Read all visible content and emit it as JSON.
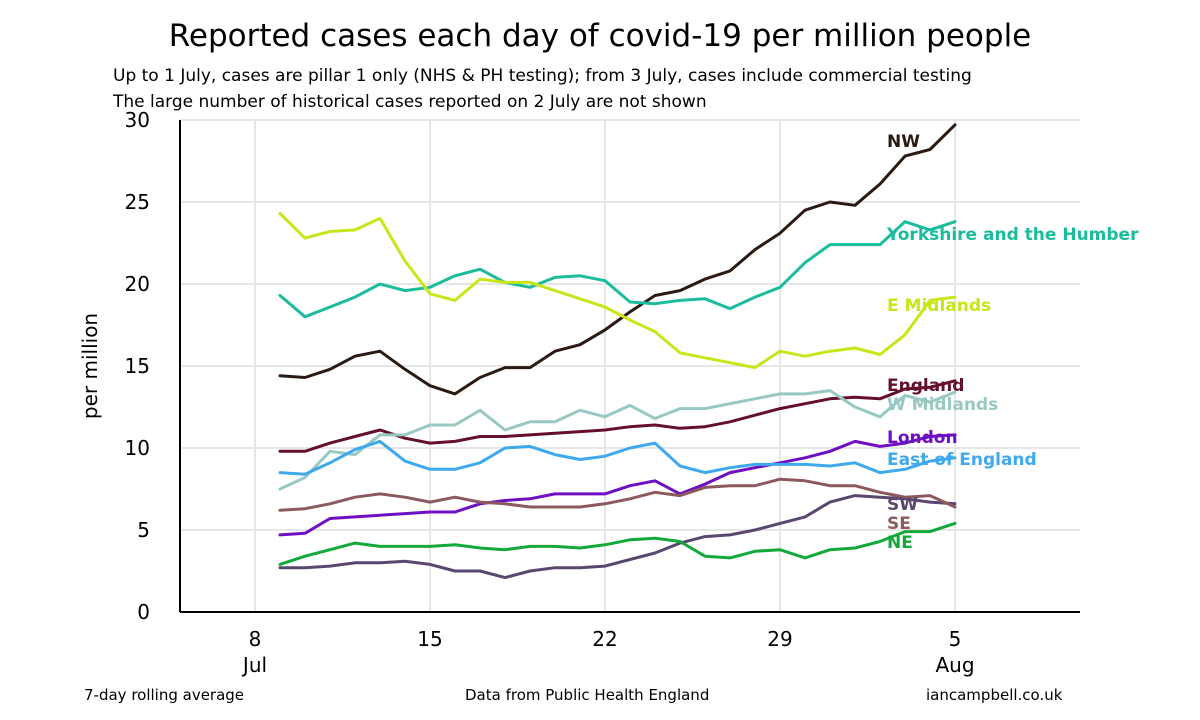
{
  "title": "Reported cases each day of covid-19 per million people",
  "subtitle_1": "Up to 1 July, cases are pillar 1 only (NHS & PH testing); from 3 July, cases include commercial testing",
  "subtitle_2": "The large number of historical cases reported on 2 July are not shown",
  "footer": {
    "left": "7-day rolling average",
    "center": "Data from Public Health England",
    "right": "iancampbell.co.uk"
  },
  "chart_data": {
    "type": "line",
    "ylabel": "per million",
    "xlabel": "",
    "ylim": [
      0,
      30
    ],
    "yticks": [
      0,
      5,
      10,
      15,
      20,
      25,
      30
    ],
    "xlim_days_from_8_jul": [
      -3,
      33
    ],
    "xticks": [
      {
        "day": 0,
        "label": "8",
        "sublabel": "Jul"
      },
      {
        "day": 7,
        "label": "15",
        "sublabel": ""
      },
      {
        "day": 14,
        "label": "22",
        "sublabel": ""
      },
      {
        "day": 21,
        "label": "29",
        "sublabel": ""
      },
      {
        "day": 28,
        "label": "5",
        "sublabel": "Aug"
      }
    ],
    "grid": true,
    "x_dates": [
      "9 Jul",
      "10 Jul",
      "11 Jul",
      "12 Jul",
      "13 Jul",
      "14 Jul",
      "15 Jul",
      "16 Jul",
      "17 Jul",
      "18 Jul",
      "19 Jul",
      "20 Jul",
      "21 Jul",
      "22 Jul",
      "23 Jul",
      "24 Jul",
      "25 Jul",
      "26 Jul",
      "27 Jul",
      "28 Jul",
      "29 Jul",
      "30 Jul",
      "31 Jul",
      "1 Aug",
      "2 Aug",
      "3 Aug",
      "4 Aug",
      "5 Aug"
    ],
    "series": [
      {
        "name": "NW",
        "color": "#2b1a12",
        "values": [
          14.4,
          14.3,
          14.8,
          15.6,
          15.9,
          14.8,
          13.8,
          13.3,
          14.3,
          14.9,
          14.9,
          15.9,
          16.3,
          17.2,
          18.3,
          19.3,
          19.6,
          20.3,
          20.8,
          22.1,
          23.1,
          24.5,
          25.0,
          24.8,
          26.1,
          27.8,
          28.2,
          29.7
        ]
      },
      {
        "name": "Yorkshire and the Humber",
        "color": "#1abc9c",
        "values": [
          19.3,
          18.0,
          18.6,
          19.2,
          20.0,
          19.6,
          19.8,
          20.5,
          20.9,
          20.1,
          19.8,
          20.4,
          20.5,
          20.2,
          18.9,
          18.8,
          19.0,
          19.1,
          18.5,
          19.2,
          19.8,
          21.3,
          22.4,
          22.4,
          22.4,
          23.8,
          23.3,
          23.8
        ]
      },
      {
        "name": "E Midlands",
        "color": "#c8e619",
        "values": [
          24.3,
          22.8,
          23.2,
          23.3,
          24.0,
          21.4,
          19.4,
          19.0,
          20.3,
          20.1,
          20.1,
          19.6,
          19.1,
          18.6,
          17.8,
          17.1,
          15.8,
          15.5,
          15.2,
          14.9,
          15.9,
          15.6,
          15.9,
          16.1,
          15.7,
          16.9,
          19.0,
          19.2
        ]
      },
      {
        "name": "England",
        "color": "#64102c",
        "values": [
          9.8,
          9.8,
          10.3,
          10.7,
          11.1,
          10.6,
          10.3,
          10.4,
          10.7,
          10.7,
          10.8,
          10.9,
          11.0,
          11.1,
          11.3,
          11.4,
          11.2,
          11.3,
          11.6,
          12.0,
          12.4,
          12.7,
          13.0,
          13.1,
          13.0,
          13.6,
          13.7,
          14.1
        ]
      },
      {
        "name": "W Midlands",
        "color": "#97c9c2",
        "values": [
          7.5,
          8.2,
          9.8,
          9.6,
          10.8,
          10.8,
          11.4,
          11.4,
          12.3,
          11.1,
          11.6,
          11.6,
          12.3,
          11.9,
          12.6,
          11.8,
          12.4,
          12.4,
          12.7,
          13.0,
          13.3,
          13.3,
          13.5,
          12.5,
          11.9,
          13.2,
          12.8,
          13.4
        ]
      },
      {
        "name": "London",
        "color": "#6e0fc4",
        "values": [
          4.7,
          4.8,
          5.7,
          5.8,
          5.9,
          6.0,
          6.1,
          6.1,
          6.6,
          6.8,
          6.9,
          7.2,
          7.2,
          7.2,
          7.7,
          8.0,
          7.2,
          7.8,
          8.5,
          8.8,
          9.1,
          9.4,
          9.8,
          10.4,
          10.1,
          10.3,
          10.7,
          10.8
        ]
      },
      {
        "name": "East of England",
        "color": "#3fa9ee",
        "values": [
          8.5,
          8.4,
          9.1,
          9.9,
          10.4,
          9.2,
          8.7,
          8.7,
          9.1,
          10.0,
          10.1,
          9.6,
          9.3,
          9.5,
          10.0,
          10.3,
          8.9,
          8.5,
          8.8,
          9.0,
          9.0,
          9.0,
          8.9,
          9.1,
          8.5,
          8.7,
          9.2,
          9.4
        ]
      },
      {
        "name": "SW",
        "color": "#5a4770",
        "values": [
          2.7,
          2.7,
          2.8,
          3.0,
          3.0,
          3.1,
          2.9,
          2.5,
          2.5,
          2.1,
          2.5,
          2.7,
          2.7,
          2.8,
          3.2,
          3.6,
          4.2,
          4.6,
          4.7,
          5.0,
          5.4,
          5.8,
          6.7,
          7.1,
          7.0,
          6.9,
          6.7,
          6.6
        ]
      },
      {
        "name": "SE",
        "color": "#8c5a5e",
        "values": [
          6.2,
          6.3,
          6.6,
          7.0,
          7.2,
          7.0,
          6.7,
          7.0,
          6.7,
          6.6,
          6.4,
          6.4,
          6.4,
          6.6,
          6.9,
          7.3,
          7.1,
          7.6,
          7.7,
          7.7,
          8.1,
          8.0,
          7.7,
          7.7,
          7.3,
          7.0,
          7.1,
          6.4
        ]
      },
      {
        "name": "NE",
        "color": "#13a83a",
        "values": [
          2.9,
          3.4,
          3.8,
          4.2,
          4.0,
          4.0,
          4.0,
          4.1,
          3.9,
          3.8,
          4.0,
          4.0,
          3.9,
          4.1,
          4.4,
          4.5,
          4.3,
          3.4,
          3.3,
          3.7,
          3.8,
          3.3,
          3.8,
          3.9,
          4.3,
          4.9,
          4.9,
          5.4
        ]
      }
    ]
  }
}
